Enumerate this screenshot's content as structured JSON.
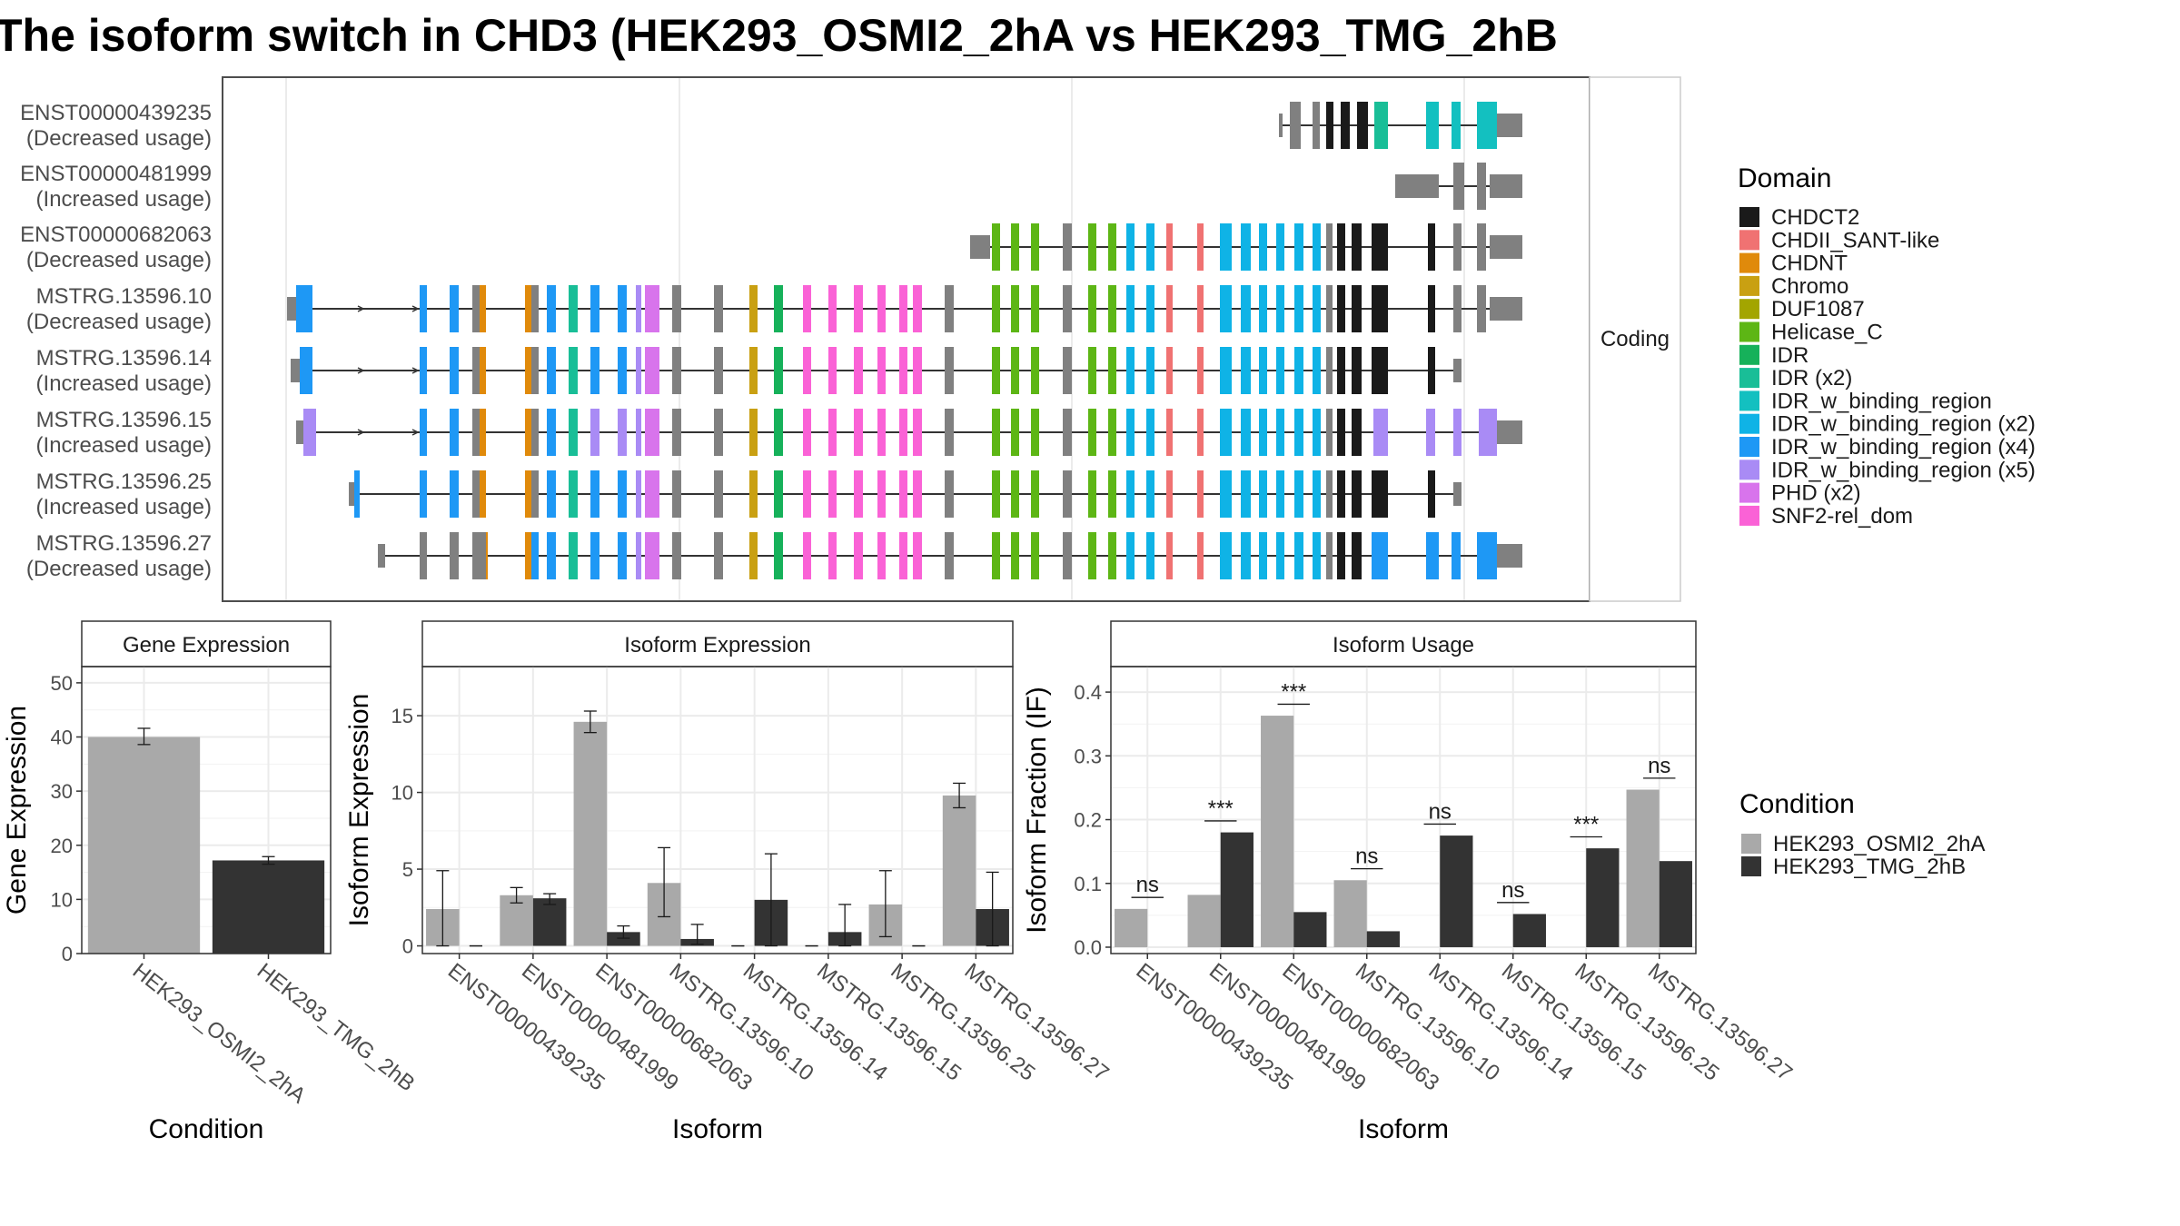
{
  "title": "The isoform switch in CHD3 (HEK293_OSMI2_2hA vs HEK293_TMG_2hB",
  "facet_label": "Coding",
  "domain_legend": {
    "title": "Domain",
    "items": [
      {
        "name": "CHDCT2",
        "color": "#1a1a1a"
      },
      {
        "name": "CHDII_SANT-like",
        "color": "#f07272"
      },
      {
        "name": "CHDNT",
        "color": "#e08a0b"
      },
      {
        "name": "Chromo",
        "color": "#c9a012"
      },
      {
        "name": "DUF1087",
        "color": "#a3a500"
      },
      {
        "name": "Helicase_C",
        "color": "#5db615"
      },
      {
        "name": "IDR",
        "color": "#16b15a"
      },
      {
        "name": "IDR (x2)",
        "color": "#19be97"
      },
      {
        "name": "IDR_w_binding_region",
        "color": "#13c0c0"
      },
      {
        "name": "IDR_w_binding_region (x2)",
        "color": "#0fb3e6"
      },
      {
        "name": "IDR_w_binding_region (x4)",
        "color": "#1e98f5"
      },
      {
        "name": "IDR_w_binding_region (x5)",
        "color": "#a98bf5"
      },
      {
        "name": "PHD (x2)",
        "color": "#d874ec"
      },
      {
        "name": "SNF2-rel_dom",
        "color": "#fa62d6"
      }
    ]
  },
  "transcripts": [
    {
      "id": "ENST00000439235",
      "usage": "(Decreased usage)"
    },
    {
      "id": "ENST00000481999",
      "usage": "(Increased usage)"
    },
    {
      "id": "ENST00000682063",
      "usage": "(Decreased usage)"
    },
    {
      "id": "MSTRG.13596.10",
      "usage": "(Decreased usage)"
    },
    {
      "id": "MSTRG.13596.14",
      "usage": "(Increased usage)"
    },
    {
      "id": "MSTRG.13596.15",
      "usage": "(Increased usage)"
    },
    {
      "id": "MSTRG.13596.25",
      "usage": "(Increased usage)"
    },
    {
      "id": "MSTRG.13596.27",
      "usage": "(Decreased usage)"
    }
  ],
  "condition_legend": {
    "title": "Condition",
    "items": [
      {
        "name": "HEK293_OSMI2_2hA",
        "color": "#a9a9a9"
      },
      {
        "name": "HEK293_TMG_2hB",
        "color": "#333333"
      }
    ]
  },
  "chart_data": [
    {
      "type": "bar",
      "strip": "Gene Expression",
      "xlabel": "Condition",
      "ylabel": "Gene Expression",
      "categories": [
        "HEK293_OSMI2_2hA",
        "HEK293_TMG_2hB"
      ],
      "values": [
        40,
        17.2
      ],
      "err_low": [
        38.6,
        16.5
      ],
      "err_high": [
        41.6,
        17.9
      ],
      "ylim": [
        0,
        53
      ],
      "yticks": [
        0,
        10,
        20,
        30,
        40,
        50
      ]
    },
    {
      "type": "bar",
      "strip": "Isoform Expression",
      "xlabel": "Isoform",
      "ylabel": "Isoform Expression",
      "categories": [
        "ENST00000439235",
        "ENST00000481999",
        "ENST00000682063",
        "MSTRG.13596.10",
        "MSTRG.13596.14",
        "MSTRG.13596.15",
        "MSTRG.13596.25",
        "MSTRG.13596.27"
      ],
      "series": [
        {
          "name": "HEK293_OSMI2_2hA",
          "values": [
            2.4,
            3.3,
            14.6,
            4.1,
            0,
            0,
            2.7,
            9.8
          ],
          "err_low": [
            0,
            2.8,
            13.9,
            1.9,
            0,
            0,
            0.6,
            9.0
          ],
          "err_high": [
            4.9,
            3.8,
            15.3,
            6.4,
            0,
            0,
            4.9,
            10.6
          ]
        },
        {
          "name": "HEK293_TMG_2hB",
          "values": [
            0,
            3.1,
            0.9,
            0.45,
            3.0,
            0.9,
            0,
            2.4
          ],
          "err_low": [
            0,
            2.7,
            0.5,
            0.1,
            0,
            0,
            0,
            0
          ],
          "err_high": [
            0,
            3.4,
            1.3,
            1.4,
            6.0,
            2.7,
            0,
            4.8
          ]
        }
      ],
      "ylim": [
        -0.5,
        18.2
      ],
      "yticks": [
        0,
        5,
        10,
        15
      ]
    },
    {
      "type": "bar",
      "strip": "Isoform Usage",
      "xlabel": "Isoform",
      "ylabel": "Isoform Fraction (IF)",
      "categories": [
        "ENST00000439235",
        "ENST00000481999",
        "ENST00000682063",
        "MSTRG.13596.10",
        "MSTRG.13596.14",
        "MSTRG.13596.15",
        "MSTRG.13596.25",
        "MSTRG.13596.27"
      ],
      "series": [
        {
          "name": "HEK293_OSMI2_2hA",
          "values": [
            0.06,
            0.082,
            0.363,
            0.105,
            0,
            0,
            0,
            0.247
          ]
        },
        {
          "name": "HEK293_TMG_2hB",
          "values": [
            0,
            0.18,
            0.055,
            0.025,
            0.175,
            0.052,
            0.155,
            0.135
          ]
        }
      ],
      "significance": [
        "ns",
        "***",
        "***",
        "ns",
        "ns",
        "ns",
        "***",
        "ns"
      ],
      "ylim": [
        -0.01,
        0.44
      ],
      "yticks": [
        0.0,
        0.1,
        0.2,
        0.3,
        0.4
      ],
      "ytick_labels": [
        "0.0",
        "0.1",
        "0.2",
        "0.3",
        "0.4"
      ]
    }
  ]
}
